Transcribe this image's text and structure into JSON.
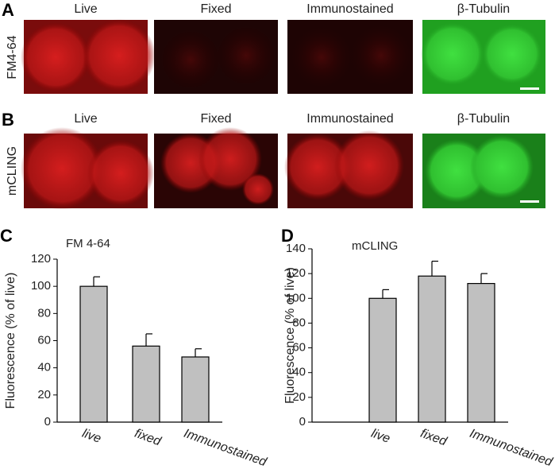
{
  "figure": {
    "panels": [
      {
        "letter": "A",
        "row_label": "FM4-64",
        "columns": [
          "Live",
          "Fixed",
          "Immunostained",
          "β-Tubulin"
        ]
      },
      {
        "letter": "B",
        "row_label": "mCLING",
        "columns": [
          "Live",
          "Fixed",
          "Immunostained",
          "β-Tubulin"
        ]
      }
    ]
  },
  "chart_data": [
    {
      "type": "bar",
      "panel": "C",
      "title": "FM 4-64",
      "y_label": "Fluorescence (% of live)",
      "categories": [
        "live",
        "fixed",
        "Immunostained"
      ],
      "values": [
        100,
        56,
        48
      ],
      "errors": [
        7,
        9,
        6
      ],
      "color": "#c0c0c0",
      "ylim": [
        0,
        120
      ],
      "yticks": [
        0,
        20,
        40,
        60,
        80,
        100,
        120
      ]
    },
    {
      "type": "bar",
      "panel": "D",
      "title": "mCLING",
      "y_label": "Fluorescence (% of live)",
      "categories": [
        "live",
        "fixed",
        "Immunostained"
      ],
      "values": [
        100,
        118,
        112
      ],
      "errors": [
        7,
        12,
        8
      ],
      "color": "#c0c0c0",
      "ylim": [
        0,
        140
      ],
      "yticks": [
        0,
        20,
        40,
        60,
        80,
        100,
        120,
        140
      ]
    }
  ]
}
